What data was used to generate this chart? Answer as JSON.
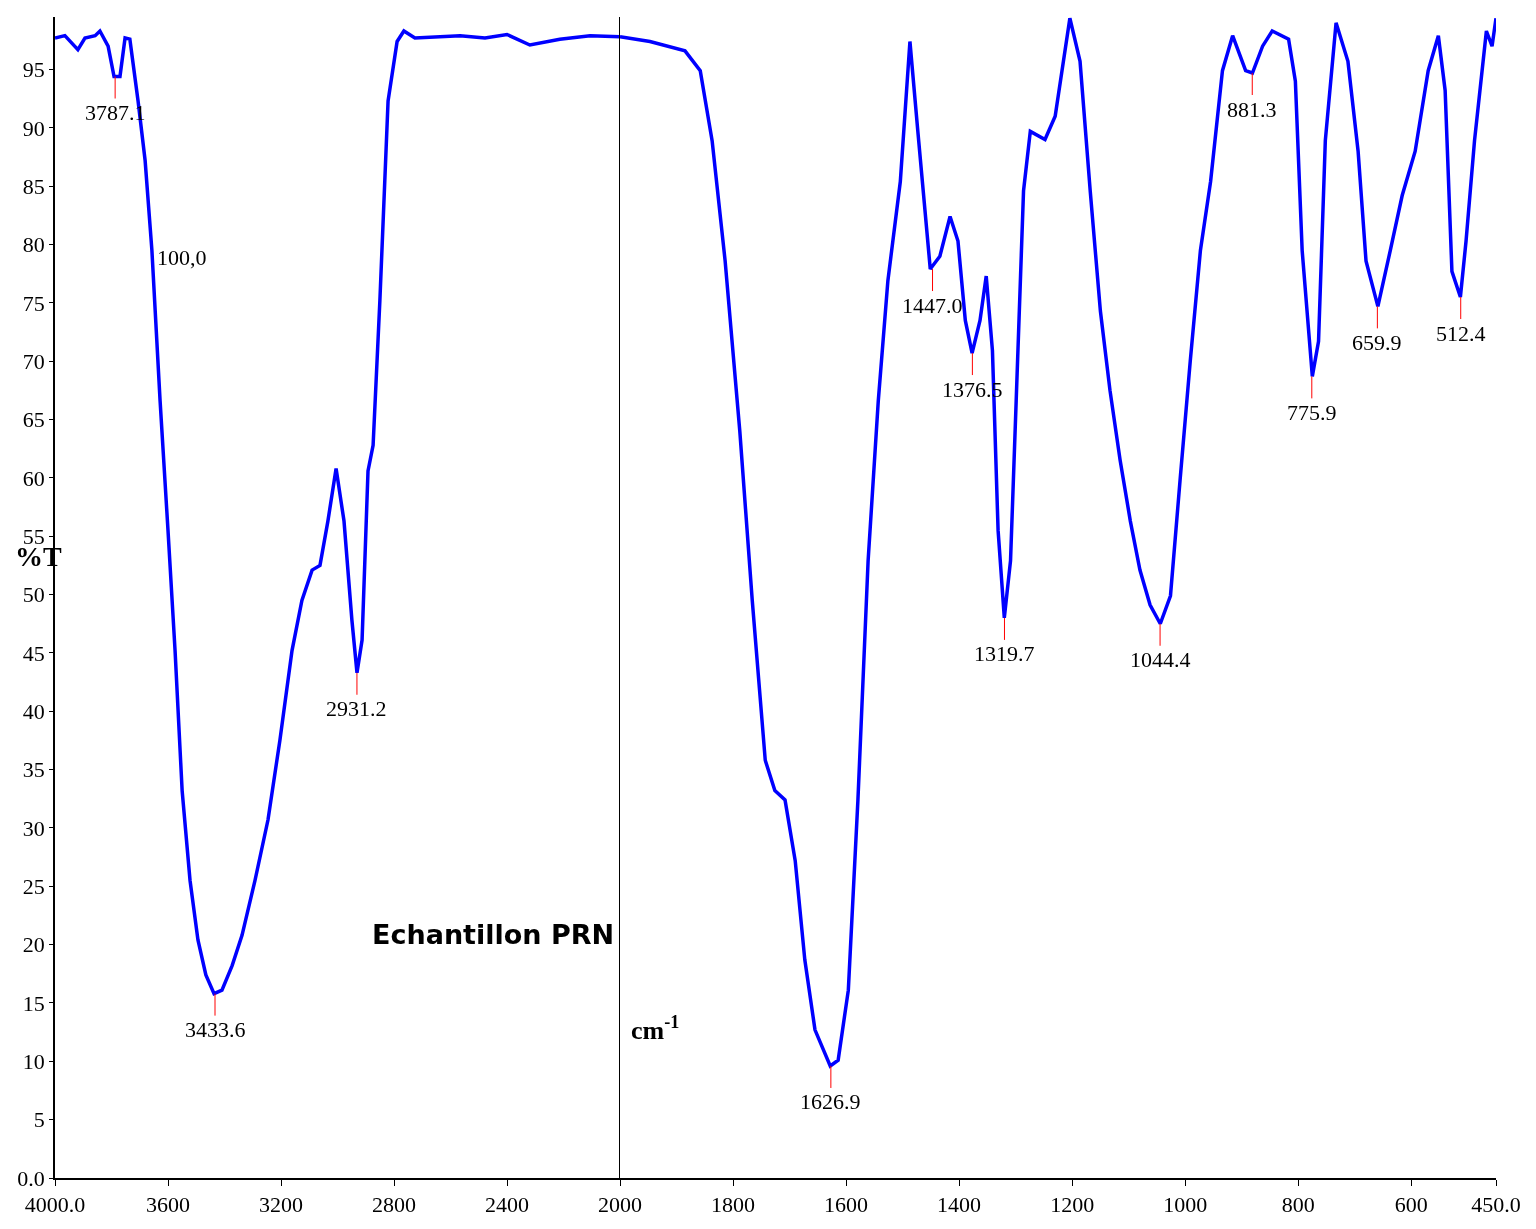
{
  "chart_data": [
    {
      "type": "line",
      "title": "Echantillon PRN",
      "ylabel": "%T",
      "x": [
        4000,
        3965,
        3919,
        3894,
        3858,
        3841,
        3812,
        3791,
        3770,
        3752,
        3735,
        3706,
        3681,
        3657,
        3628,
        3600,
        3575,
        3550,
        3522,
        3494,
        3466,
        3437,
        3409,
        3373,
        3338,
        3292,
        3246,
        3204,
        3161,
        3126,
        3090,
        3062,
        3034,
        3005,
        2977,
        2949,
        2931,
        2913,
        2892,
        2874,
        2850,
        2821,
        2789,
        2765,
        2726,
        2566,
        2478,
        2400,
        2319,
        2213,
        2106,
        2000
      ],
      "series": [
        {
          "color": "#0000ff",
          "values": [
            97.7,
            97.9,
            96.7,
            97.7,
            97.9,
            98.3,
            97.0,
            94.4,
            94.4,
            97.7,
            97.6,
            92.3,
            87.2,
            79.5,
            66.6,
            55.5,
            45.2,
            33.2,
            25.5,
            20.4,
            17.4,
            15.8,
            16.1,
            18.2,
            20.8,
            25.5,
            30.7,
            37.5,
            45.2,
            49.5,
            52.1,
            52.5,
            56.3,
            60.8,
            56.3,
            47.8,
            43.3,
            46.1,
            60.6,
            62.8,
            75.2,
            92.3,
            97.4,
            98.3,
            97.7,
            97.9,
            97.7,
            98.0,
            97.1,
            97.6,
            97.9,
            97.8
          ]
        }
      ],
      "annotations": [
        {
          "text": "3787.1",
          "x": 3787.1,
          "y": 94.4
        },
        {
          "text": "3433.6",
          "x": 3433.6,
          "y": 15.8
        },
        {
          "text": "2931.2",
          "x": 2931.2,
          "y": 43.3
        },
        "100,0"
      ],
      "xlim": [
        4000,
        2000
      ],
      "xticks": [
        {
          "value": 4000,
          "label": "4000.0"
        },
        3600,
        3200,
        2800,
        2400,
        2000
      ],
      "ylim": [
        0,
        99.5
      ],
      "yticks": [
        {
          "value": 0,
          "label": "0.0"
        },
        5,
        10,
        15,
        20,
        25,
        30,
        35,
        40,
        45,
        50,
        55,
        60,
        65,
        70,
        75,
        80,
        85,
        90,
        95
      ],
      "grid": false,
      "marker": "none",
      "line_style": "solid"
    },
    {
      "type": "line",
      "xlabel": "cm$^{-1}$",
      "x": [
        2000,
        1947,
        1885,
        1858,
        1837,
        1814,
        1788,
        1766,
        1743,
        1726,
        1708,
        1690,
        1673,
        1655,
        1628,
        1614,
        1596,
        1579,
        1561,
        1543,
        1526,
        1504,
        1487,
        1473,
        1451,
        1434,
        1416,
        1402,
        1389,
        1377,
        1363,
        1352,
        1341,
        1331,
        1320,
        1309,
        1299,
        1286,
        1274,
        1248,
        1230,
        1204,
        1186,
        1168,
        1150,
        1133,
        1115,
        1097,
        1080,
        1062,
        1044,
        1026,
        1009,
        991,
        973,
        955,
        934,
        916,
        893,
        881,
        863,
        846,
        817,
        805,
        793,
        775,
        764,
        752,
        733,
        712,
        694,
        680,
        659,
        637,
        616,
        593,
        570,
        552,
        540,
        528,
        513,
        503,
        488,
        467,
        457,
        450
      ],
      "series": [
        {
          "color": "#0000ff",
          "values": [
            97.8,
            97.4,
            96.6,
            94.9,
            88.9,
            78.6,
            64.0,
            49.5,
            35.8,
            33.2,
            32.4,
            27.2,
            18.7,
            12.7,
            9.6,
            10.1,
            16.1,
            32.4,
            52.9,
            66.6,
            76.9,
            85.4,
            97.4,
            89.7,
            77.9,
            79.0,
            82.4,
            80.3,
            73.5,
            70.7,
            73.5,
            77.3,
            70.9,
            55.5,
            48.0,
            52.9,
            66.6,
            84.6,
            89.7,
            89.0,
            91.0,
            99.4,
            95.7,
            84.6,
            74.3,
            67.5,
            61.5,
            56.3,
            52.1,
            49.1,
            47.5,
            49.9,
            59.8,
            70.0,
            79.5,
            85.4,
            94.9,
            97.9,
            94.9,
            94.7,
            97.0,
            98.3,
            97.6,
            94.0,
            79.5,
            68.7,
            71.7,
            88.9,
            99.0,
            95.7,
            88.0,
            78.6,
            74.7,
            79.5,
            84.2,
            88.0,
            94.9,
            97.9,
            93.2,
            77.7,
            75.5,
            80.3,
            88.9,
            98.3,
            97.0,
            99.4
          ]
        }
      ],
      "annotations": [
        {
          "text": "1626.9",
          "x": 1626.9,
          "y": 9.6
        },
        {
          "text": "1447.0",
          "x": 1447.0,
          "y": 77.9
        },
        {
          "text": "1376.5",
          "x": 1376.5,
          "y": 70.7
        },
        {
          "text": "1319.7",
          "x": 1319.7,
          "y": 48.0
        },
        {
          "text": "1044.4",
          "x": 1044.4,
          "y": 47.5
        },
        {
          "text": "881.3",
          "x": 881.3,
          "y": 94.7
        },
        {
          "text": "775.9",
          "x": 775.9,
          "y": 68.7
        },
        {
          "text": "659.9",
          "x": 659.9,
          "y": 74.7
        },
        {
          "text": "512.4",
          "x": 512.4,
          "y": 75.5
        }
      ],
      "xlim": [
        2000,
        450
      ],
      "xticks": [
        1800,
        1600,
        1400,
        1200,
        1000,
        800,
        600,
        {
          "value": 450,
          "label": "450.0"
        }
      ],
      "ylim": [
        0,
        99.5
      ],
      "yticks": [
        0,
        5,
        10,
        15,
        20,
        25,
        30,
        35,
        40,
        45,
        50,
        55,
        60,
        65,
        70,
        75,
        80,
        85,
        90,
        95
      ],
      "tick_labels": "x",
      "grid": false,
      "marker": "none",
      "line_style": "solid"
    }
  ]
}
